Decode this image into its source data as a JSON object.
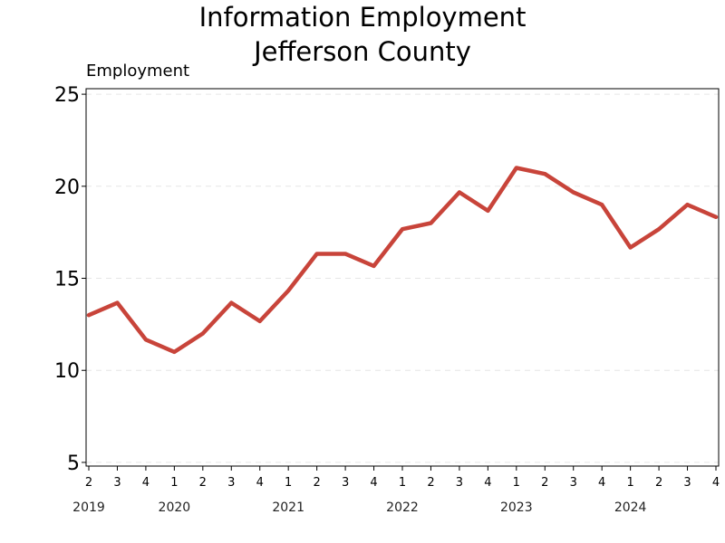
{
  "chart_data": {
    "type": "line",
    "title": "Information Employment",
    "subtitle": "Jefferson County",
    "ylabel": "Employment",
    "xlabel": "",
    "ylim": [
      4.8,
      25.3
    ],
    "yticks": [
      5,
      10,
      15,
      20,
      25
    ],
    "grid": "horizontal dashed",
    "line_color": "#c8443a",
    "x": [
      "2019 Q2",
      "2019 Q3",
      "2019 Q4",
      "2020 Q1",
      "2020 Q2",
      "2020 Q3",
      "2020 Q4",
      "2021 Q1",
      "2021 Q2",
      "2021 Q3",
      "2021 Q4",
      "2022 Q1",
      "2022 Q2",
      "2022 Q3",
      "2022 Q4",
      "2023 Q1",
      "2023 Q2",
      "2023 Q3",
      "2023 Q4",
      "2024 Q1",
      "2024 Q2",
      "2024 Q3",
      "2024 Q4"
    ],
    "quarter_labels": [
      "2",
      "3",
      "4",
      "1",
      "2",
      "3",
      "4",
      "1",
      "2",
      "3",
      "4",
      "1",
      "2",
      "3",
      "4",
      "1",
      "2",
      "3",
      "4",
      "1",
      "2",
      "3",
      "4"
    ],
    "year_labels": [
      {
        "label": "2019",
        "quarter_index": 0
      },
      {
        "label": "2020",
        "quarter_index": 3
      },
      {
        "label": "2021",
        "quarter_index": 7
      },
      {
        "label": "2022",
        "quarter_index": 11
      },
      {
        "label": "2023",
        "quarter_index": 15
      },
      {
        "label": "2024",
        "quarter_index": 19
      }
    ],
    "series": [
      {
        "values": [
          13.0,
          13.67,
          11.67,
          11.0,
          12.0,
          13.67,
          12.67,
          14.33,
          16.33,
          16.33,
          15.67,
          17.67,
          18.0,
          19.67,
          18.67,
          21.0,
          20.67,
          19.67,
          19.0,
          16.67,
          17.67,
          19.0,
          18.33
        ]
      }
    ]
  }
}
